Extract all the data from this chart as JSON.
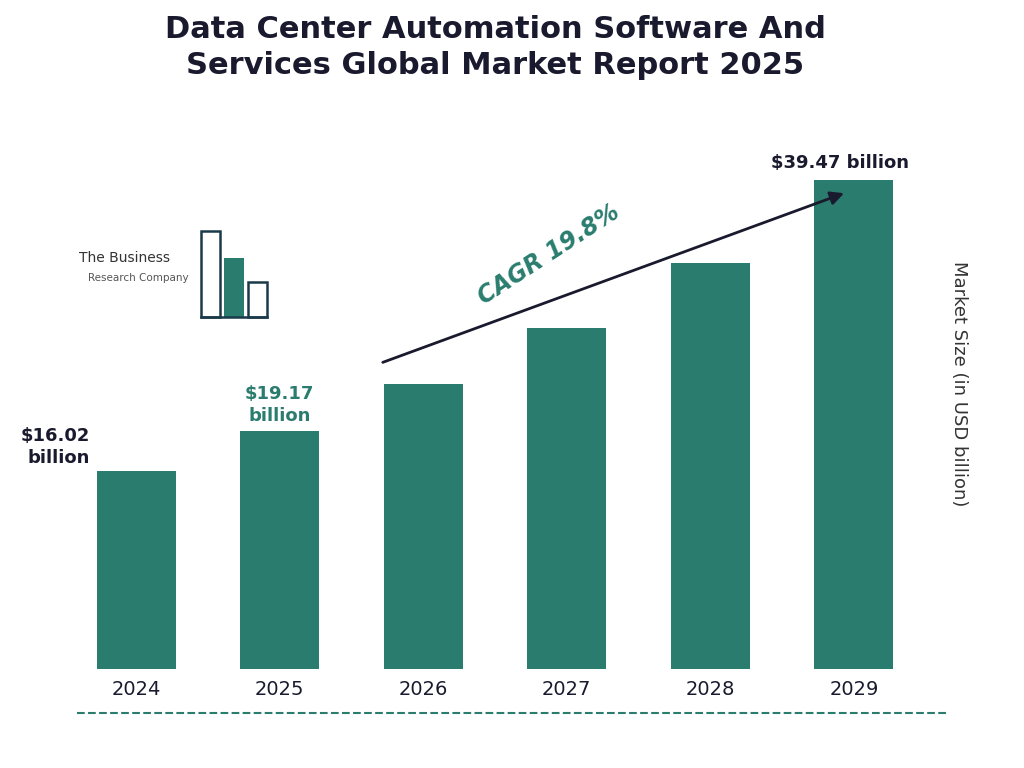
{
  "title": "Data Center Automation Software And\nServices Global Market Report 2025",
  "years": [
    "2024",
    "2025",
    "2026",
    "2027",
    "2028",
    "2029"
  ],
  "values": [
    16.02,
    19.17,
    23.0,
    27.5,
    32.8,
    39.47
  ],
  "bar_color": "#2a7d6e",
  "background_color": "#ffffff",
  "title_color": "#1a1a2e",
  "ylabel": "Market Size (in USD billion)",
  "ylabel_color": "#333333",
  "label_first": "$16.02\nbillion",
  "label_second": "$19.17\nbillion",
  "label_last": "$39.47 billion",
  "label_color_first": "#1a1a2e",
  "label_color_second": "#2a7d6e",
  "label_color_last": "#1a1a2e",
  "cagr_text": "CAGR 19.8%",
  "cagr_color": "#2a7d6e",
  "arrow_color": "#1a1a2e",
  "bottom_line_color": "#2a7d6e",
  "logo_dark_color": "#1a3a4a",
  "logo_teal_color": "#2a7d6e",
  "title_fontsize": 22,
  "tick_fontsize": 14,
  "ylabel_fontsize": 13,
  "ylim": [
    0,
    46
  ]
}
